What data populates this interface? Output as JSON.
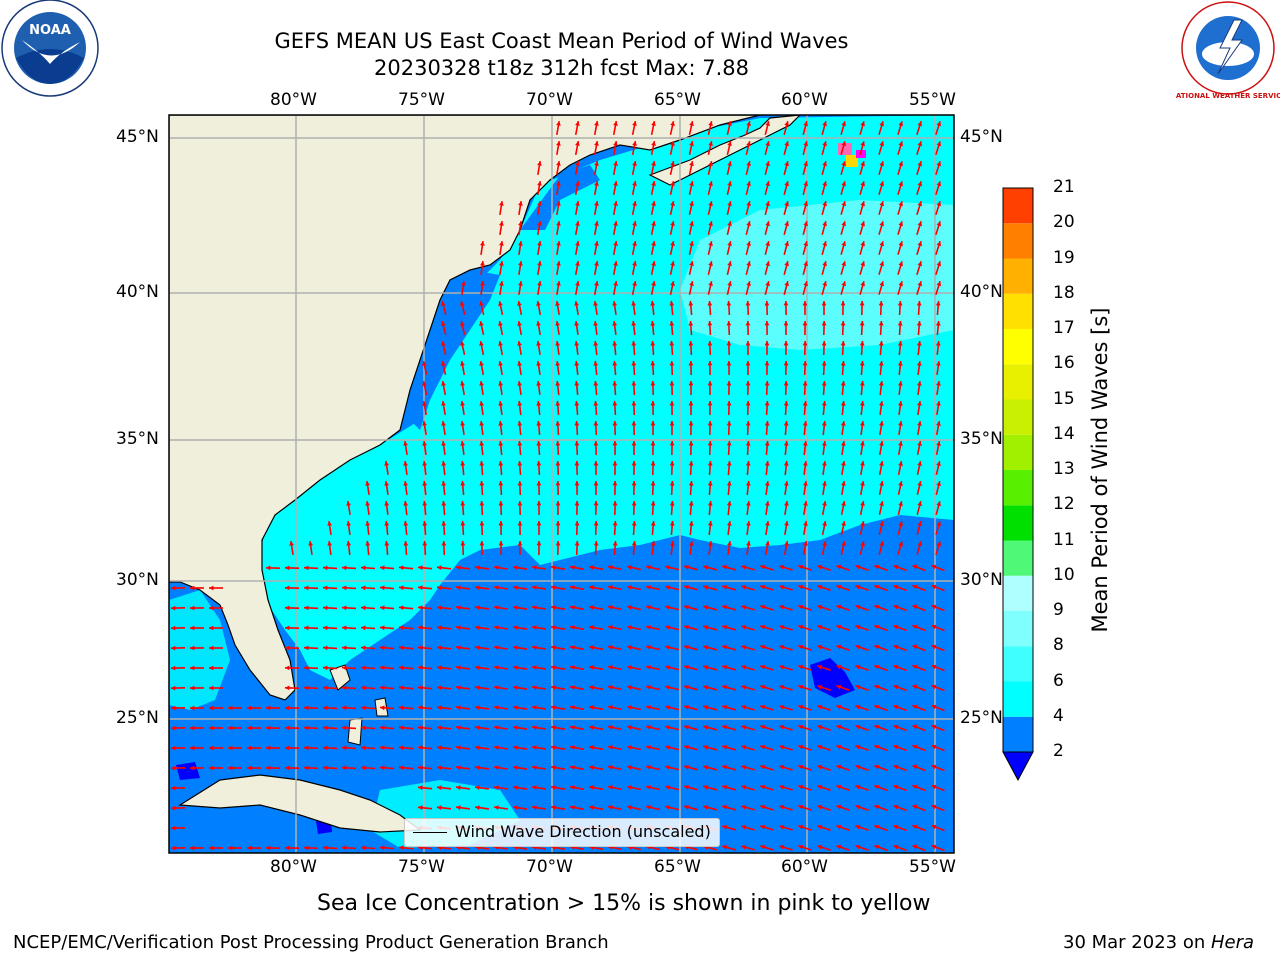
{
  "header": {
    "title_line1": "GEFS MEAN US East Coast Mean Period of Wind Waves",
    "title_line2": "20230328 t18z 312h fcst   Max: 7.88"
  },
  "logos": {
    "left": {
      "text": "NOAA",
      "icon": "noaa-logo-icon"
    },
    "right": {
      "text": "NATIONAL WEATHER SERVICE",
      "icon": "nws-logo-icon"
    }
  },
  "map": {
    "lon_labels": [
      "80°W",
      "75°W",
      "70°W",
      "65°W",
      "60°W",
      "55°W"
    ],
    "lat_labels": [
      "45°N",
      "40°N",
      "35°N",
      "30°N",
      "25°N"
    ],
    "colors": {
      "land": "#efefdc",
      "cyan": "#00ffff",
      "pale_cyan": "#5cfdfd",
      "blue": "#0080ff",
      "dark_blue": "#0000ff",
      "arrow": "#ff0000",
      "grid": "#b0b0b0",
      "ice_pink": "#ff69b4",
      "ice_yellow": "#ffd700"
    },
    "legend_label": "Wind Wave Direction (unscaled)"
  },
  "colorbar": {
    "label": "Mean Period of Wind Waves [s]",
    "ticks": [
      "2",
      "4",
      "6",
      "8",
      "9",
      "10",
      "11",
      "12",
      "13",
      "14",
      "15",
      "16",
      "17",
      "18",
      "19",
      "20",
      "21"
    ],
    "colors": [
      "#0080ff",
      "#00ffff",
      "#40ffff",
      "#80ffff",
      "#b0ffff",
      "#50f878",
      "#00e000",
      "#58f000",
      "#a0f000",
      "#c8f000",
      "#e8f000",
      "#ffff00",
      "#ffe000",
      "#ffb000",
      "#ff8000",
      "#ff4000",
      "#ff0000"
    ],
    "under_color": "#0000ff"
  },
  "notes": {
    "ice": "Sea Ice Concentration > 15% is shown in pink to yellow"
  },
  "footer": {
    "left": "NCEP/EMC/Verification Post Processing Product Generation Branch",
    "date": "30 Mar 2023 on ",
    "host": "Hera"
  }
}
